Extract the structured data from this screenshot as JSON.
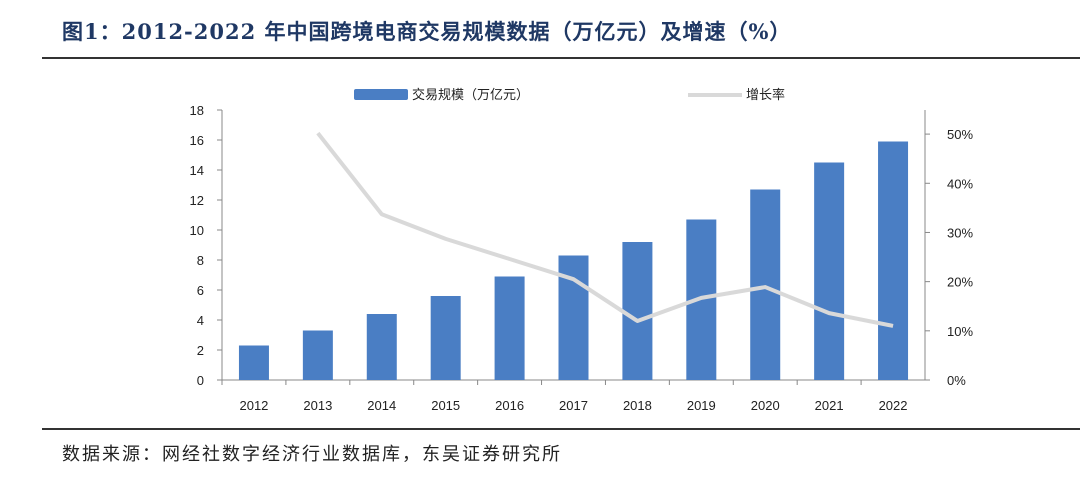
{
  "title": "图1：2012-2022 年中国跨境电商交易规模数据（万亿元）及增速（%）",
  "source": "数据来源：网经社数字经济行业数据库，东吴证券研究所",
  "chart_data": {
    "type": "bar+line",
    "categories": [
      "2012",
      "2013",
      "2014",
      "2015",
      "2016",
      "2017",
      "2018",
      "2019",
      "2020",
      "2021",
      "2022"
    ],
    "series": [
      {
        "name": "交易规模（万亿元）",
        "type": "bar",
        "axis": "left",
        "color": "#4a7ec4",
        "values": [
          2.3,
          3.3,
          4.4,
          5.6,
          6.9,
          8.3,
          9.2,
          10.7,
          12.7,
          14.5,
          15.9
        ]
      },
      {
        "name": "增长率",
        "type": "line",
        "axis": "right",
        "color": "#d9d9d9",
        "values": [
          null,
          50.2,
          33.7,
          28.7,
          24.6,
          20.5,
          12.0,
          16.7,
          18.9,
          13.6,
          11.0
        ]
      }
    ],
    "left_axis": {
      "ylim": [
        0,
        18
      ],
      "ticks": [
        "0",
        "2",
        "4",
        "6",
        "8",
        "10",
        "12",
        "14",
        "16",
        "18"
      ]
    },
    "right_axis": {
      "ylim": [
        0,
        54.9
      ],
      "ticks": [
        "0%",
        "10%",
        "20%",
        "30%",
        "40%",
        "50%"
      ]
    },
    "legend": "top"
  }
}
